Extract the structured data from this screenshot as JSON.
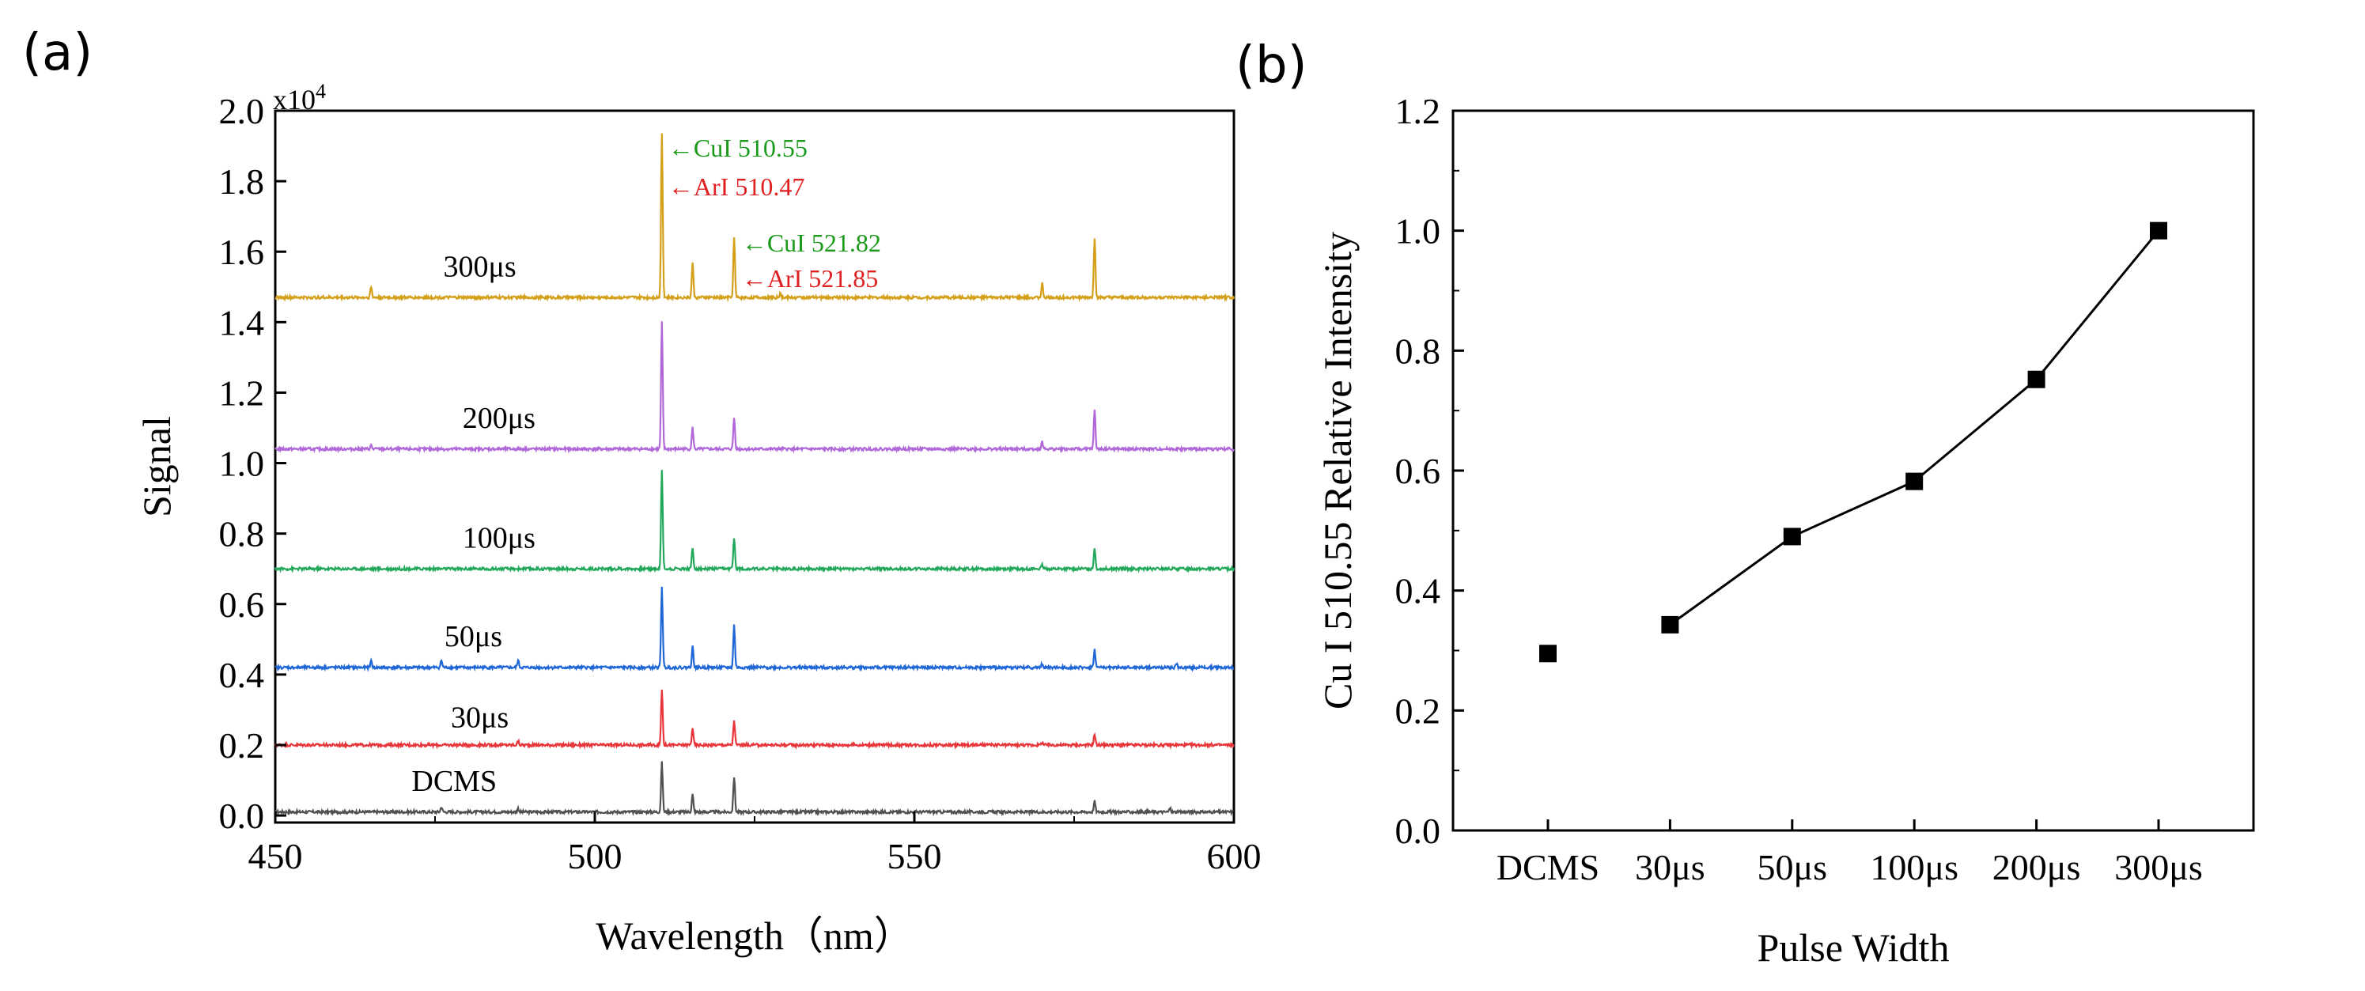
{
  "panel_a_label": "(a)",
  "panel_b_label": "(b)",
  "chart_data": [
    {
      "type": "line",
      "panel": "(a)",
      "xlabel": "Wavelength（nm）",
      "ylabel": "Signal",
      "y_multiplier": "x10",
      "y_multiplier_exp": "4",
      "xlim": [
        450,
        600
      ],
      "ylim": [
        -0.02,
        2.0
      ],
      "xticks": [
        450,
        500,
        550,
        600
      ],
      "yticks": [
        0.0,
        0.2,
        0.4,
        0.6,
        0.8,
        1.0,
        1.2,
        1.4,
        1.6,
        1.8,
        2.0
      ],
      "ytick_labels": [
        "0.0",
        "0.2",
        "0.4",
        "0.6",
        "0.8",
        "1.0",
        "1.2",
        "1.4",
        "1.6",
        "1.8",
        "2.0"
      ],
      "series": [
        {
          "name": "DCMS",
          "label": "DCMS",
          "color": "#505050",
          "baseline": 0.01,
          "label_at": [
            478,
            0.07
          ],
          "peaks": [
            [
              510.5,
              0.14
            ],
            [
              515.3,
              0.05
            ],
            [
              521.8,
              0.1
            ],
            [
              578.2,
              0.03
            ],
            [
              476.0,
              0.015
            ],
            [
              488.0,
              0.01
            ],
            [
              590.0,
              0.01
            ]
          ]
        },
        {
          "name": "30µs",
          "label": "30μs",
          "color": "#e8353a",
          "baseline": 0.2,
          "label_at": [
            482,
            0.25
          ],
          "peaks": [
            [
              510.5,
              0.16
            ],
            [
              515.3,
              0.05
            ],
            [
              521.8,
              0.07
            ],
            [
              578.2,
              0.03
            ],
            [
              488.0,
              0.01
            ],
            [
              570.0,
              0.008
            ]
          ]
        },
        {
          "name": "50µs",
          "label": "50μs",
          "color": "#1f66d6",
          "baseline": 0.42,
          "label_at": [
            481,
            0.48
          ],
          "peaks": [
            [
              510.5,
              0.23
            ],
            [
              515.3,
              0.06
            ],
            [
              521.8,
              0.12
            ],
            [
              578.2,
              0.05
            ],
            [
              465.0,
              0.02
            ],
            [
              476.0,
              0.02
            ],
            [
              488.0,
              0.02
            ],
            [
              570.0,
              0.01
            ],
            [
              591.0,
              0.01
            ]
          ]
        },
        {
          "name": "100µs",
          "label": "100μs",
          "color": "#22a85a",
          "baseline": 0.7,
          "label_at": [
            485,
            0.76
          ],
          "peaks": [
            [
              510.5,
              0.28
            ],
            [
              515.3,
              0.06
            ],
            [
              521.8,
              0.09
            ],
            [
              578.2,
              0.06
            ],
            [
              570.0,
              0.01
            ]
          ]
        },
        {
          "name": "200µs",
          "label": "200μs",
          "color": "#b067d8",
          "baseline": 1.04,
          "label_at": [
            485,
            1.1
          ],
          "peaks": [
            [
              510.5,
              0.36
            ],
            [
              515.3,
              0.06
            ],
            [
              521.8,
              0.09
            ],
            [
              578.2,
              0.11
            ],
            [
              465.0,
              0.01
            ],
            [
              570.0,
              0.02
            ]
          ]
        },
        {
          "name": "300µs",
          "label": "300μs",
          "color": "#d4a019",
          "baseline": 1.47,
          "label_at": [
            482,
            1.53
          ],
          "peaks": [
            [
              510.5,
              0.47
            ],
            [
              515.3,
              0.1
            ],
            [
              521.8,
              0.17
            ],
            [
              578.2,
              0.17
            ],
            [
              465.0,
              0.03
            ],
            [
              570.0,
              0.04
            ],
            [
              529.0,
              0.01
            ]
          ]
        }
      ],
      "annotations": [
        {
          "text": "←CuI 510.55",
          "color": "#1a9a1a",
          "at": [
            511.5,
            1.87
          ]
        },
        {
          "text": "←ArI 510.47",
          "color": "#e02020",
          "at": [
            511.5,
            1.76
          ]
        },
        {
          "text": "←CuI 521.82",
          "color": "#1a9a1a",
          "at": [
            523.0,
            1.6
          ]
        },
        {
          "text": "←ArI 521.85",
          "color": "#e02020",
          "at": [
            523.0,
            1.5
          ]
        }
      ]
    },
    {
      "type": "scatter",
      "panel": "(b)",
      "xlabel": "Pulse Width",
      "ylabel": "Cu I 510.55 Relative Intensity",
      "ylim": [
        0.0,
        1.2
      ],
      "yticks": [
        0.0,
        0.2,
        0.4,
        0.6,
        0.8,
        1.0,
        1.2
      ],
      "ytick_labels": [
        "0.0",
        "0.2",
        "0.4",
        "0.6",
        "0.8",
        "1.0",
        "1.2"
      ],
      "categories": [
        "DCMS",
        "30μs",
        "50μs",
        "100μs",
        "200μs",
        "300μs"
      ],
      "values": [
        0.295,
        0.343,
        0.49,
        0.582,
        0.752,
        1.0
      ],
      "connected_from_index": 1,
      "marker": "square",
      "color": "#000000"
    }
  ]
}
